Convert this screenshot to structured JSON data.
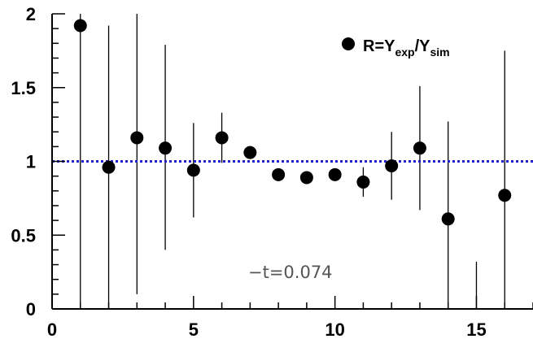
{
  "chart_data": {
    "type": "scatter",
    "title": "",
    "xlabel": "",
    "ylabel": "",
    "xlim": [
      0,
      17
    ],
    "ylim": [
      0,
      2
    ],
    "grid": false,
    "legend_position": "top-right",
    "xticks": [
      "0",
      "5",
      "10",
      "15"
    ],
    "yticks": [
      "0",
      "0.5",
      "1",
      "1.5",
      "2"
    ],
    "series": [
      {
        "name": "R=Y_exp/Y_sim",
        "marker": "filled-circle",
        "color": "#000000",
        "points": [
          {
            "x": 1,
            "y": 1.92,
            "err_low": 1.92,
            "err_high": 0.08
          },
          {
            "x": 2,
            "y": 0.96,
            "err_low": 0.96,
            "err_high": 0.96
          },
          {
            "x": 3,
            "y": 1.16,
            "err_low": 1.06,
            "err_high": 0.84
          },
          {
            "x": 4,
            "y": 1.09,
            "err_low": 0.69,
            "err_high": 0.7
          },
          {
            "x": 5,
            "y": 0.94,
            "err_low": 0.32,
            "err_high": 0.32
          },
          {
            "x": 6,
            "y": 1.16,
            "err_low": 0.17,
            "err_high": 0.17
          },
          {
            "x": 7,
            "y": 1.06,
            "err_low": 0.04,
            "err_high": 0.04
          },
          {
            "x": 8,
            "y": 0.91,
            "err_low": 0.02,
            "err_high": 0.02
          },
          {
            "x": 9,
            "y": 0.89,
            "err_low": 0.02,
            "err_high": 0.02
          },
          {
            "x": 10,
            "y": 0.91,
            "err_low": 0.03,
            "err_high": 0.03
          },
          {
            "x": 11,
            "y": 0.86,
            "err_low": 0.1,
            "err_high": 0.1
          },
          {
            "x": 12,
            "y": 0.97,
            "err_low": 0.23,
            "err_high": 0.23
          },
          {
            "x": 13,
            "y": 1.09,
            "err_low": 0.42,
            "err_high": 0.42
          },
          {
            "x": 14,
            "y": 0.61,
            "err_low": 0.61,
            "err_high": 0.66
          },
          {
            "x": 15,
            "y": null,
            "err_low": 0.32,
            "err_high": 0.32
          },
          {
            "x": 16,
            "y": 0.77,
            "err_low": 0.77,
            "err_high": 0.98
          }
        ]
      }
    ],
    "reference_line": {
      "y": 1,
      "style": "dotted",
      "color": "#2222cc"
    },
    "legend": {
      "label_main": "R=Y",
      "sub1": "exp",
      "slash": "/Y",
      "sub2": "sim"
    },
    "annotation": "−t=0.074"
  }
}
